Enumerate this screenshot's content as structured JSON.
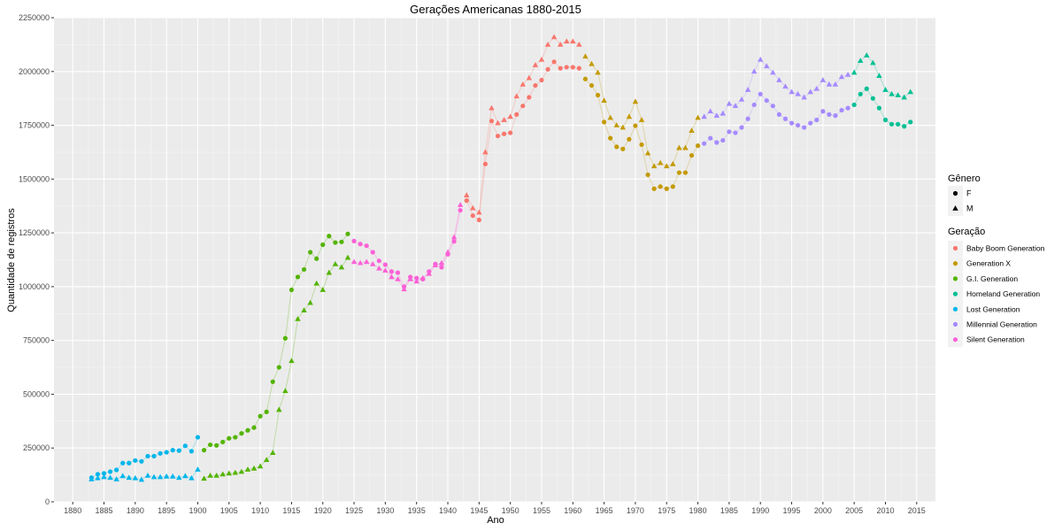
{
  "chart_data": {
    "type": "scatter",
    "title": "Gerações Americanas 1880-2015",
    "xlabel": "Ano",
    "ylabel": "Quantidade de registros",
    "xlim": [
      1877,
      2018
    ],
    "ylim": [
      0,
      2250000
    ],
    "x_ticks": [
      1880,
      1885,
      1890,
      1895,
      1900,
      1905,
      1910,
      1915,
      1920,
      1925,
      1930,
      1935,
      1940,
      1945,
      1950,
      1955,
      1960,
      1965,
      1970,
      1975,
      1980,
      1985,
      1990,
      1995,
      2000,
      2005,
      2010,
      2015
    ],
    "y_ticks": [
      0,
      250000,
      500000,
      750000,
      1000000,
      1250000,
      1500000,
      1750000,
      2000000,
      2250000
    ],
    "grid": true,
    "legend_placement": "right",
    "shape_legend": {
      "title": "Gênero",
      "items": [
        {
          "label": "F",
          "shape": "circle"
        },
        {
          "label": "M",
          "shape": "triangle"
        }
      ]
    },
    "color_legend": {
      "title": "Geração",
      "items": [
        {
          "label": "Baby Boom Generation",
          "color": "#F8766D"
        },
        {
          "label": "Generation X",
          "color": "#C49A00"
        },
        {
          "label": "G.I. Generation",
          "color": "#53B400"
        },
        {
          "label": "Homeland Generation",
          "color": "#00C094"
        },
        {
          "label": "Lost Generation",
          "color": "#00B6EB"
        },
        {
          "label": "Millennial Generation",
          "color": "#A58AFF"
        },
        {
          "label": "Silent Generation",
          "color": "#FB61D7"
        }
      ]
    },
    "series": [
      {
        "generation": "Lost Generation",
        "gender": "F",
        "x": [
          1883,
          1884,
          1885,
          1886,
          1887,
          1888,
          1889,
          1890,
          1891,
          1892,
          1893,
          1894,
          1895,
          1896,
          1897,
          1898,
          1899,
          1900
        ],
        "y": [
          112000,
          128000,
          132000,
          140000,
          148000,
          180000,
          180000,
          192000,
          188000,
          212000,
          212000,
          225000,
          230000,
          240000,
          238000,
          260000,
          235000,
          300000
        ]
      },
      {
        "generation": "Lost Generation",
        "gender": "M",
        "x": [
          1883,
          1884,
          1885,
          1886,
          1887,
          1888,
          1889,
          1890,
          1891,
          1892,
          1893,
          1894,
          1895,
          1896,
          1897,
          1898,
          1899,
          1900
        ],
        "y": [
          105000,
          110000,
          115000,
          112000,
          105000,
          120000,
          112000,
          110000,
          103000,
          122000,
          115000,
          115000,
          118000,
          118000,
          112000,
          120000,
          110000,
          150000
        ]
      },
      {
        "generation": "G.I. Generation",
        "gender": "F",
        "x": [
          1901,
          1902,
          1903,
          1904,
          1905,
          1906,
          1907,
          1908,
          1909,
          1910,
          1911,
          1912,
          1913,
          1914,
          1915,
          1916,
          1917,
          1918,
          1919,
          1920,
          1921,
          1922,
          1923,
          1924
        ],
        "y": [
          240000,
          265000,
          262000,
          278000,
          295000,
          300000,
          318000,
          332000,
          345000,
          398000,
          418000,
          558000,
          625000,
          760000,
          985000,
          1045000,
          1080000,
          1160000,
          1130000,
          1195000,
          1235000,
          1205000,
          1208000,
          1245000
        ]
      },
      {
        "generation": "G.I. Generation",
        "gender": "M",
        "x": [
          1901,
          1902,
          1903,
          1904,
          1905,
          1906,
          1907,
          1908,
          1909,
          1910,
          1911,
          1912,
          1913,
          1914,
          1915,
          1916,
          1917,
          1918,
          1919,
          1920,
          1921,
          1922,
          1923,
          1924
        ],
        "y": [
          108000,
          122000,
          122000,
          128000,
          132000,
          135000,
          140000,
          150000,
          155000,
          165000,
          195000,
          228000,
          428000,
          515000,
          655000,
          850000,
          890000,
          925000,
          1015000,
          985000,
          1065000,
          1105000,
          1090000,
          1135000
        ]
      },
      {
        "generation": "Silent Generation",
        "gender": "F",
        "x": [
          1925,
          1926,
          1927,
          1928,
          1929,
          1930,
          1931,
          1932,
          1933,
          1934,
          1935,
          1936,
          1937,
          1938,
          1939,
          1940,
          1941,
          1942
        ],
        "y": [
          1212000,
          1198000,
          1190000,
          1160000,
          1120000,
          1102000,
          1070000,
          1065000,
          1000000,
          1045000,
          1040000,
          1035000,
          1070000,
          1105000,
          1090000,
          1150000,
          1210000,
          1355000
        ]
      },
      {
        "generation": "Silent Generation",
        "gender": "M",
        "x": [
          1925,
          1926,
          1927,
          1928,
          1929,
          1930,
          1931,
          1932,
          1933,
          1934,
          1935,
          1936,
          1937,
          1938,
          1939,
          1940,
          1941,
          1942
        ],
        "y": [
          1115000,
          1110000,
          1115000,
          1105000,
          1085000,
          1075000,
          1045000,
          1035000,
          988000,
          1035000,
          1025000,
          1040000,
          1060000,
          1100000,
          1110000,
          1160000,
          1230000,
          1380000
        ]
      },
      {
        "generation": "Baby Boom Generation",
        "gender": "F",
        "x": [
          1943,
          1944,
          1945,
          1946,
          1947,
          1948,
          1949,
          1950,
          1951,
          1952,
          1953,
          1954,
          1955,
          1956,
          1957,
          1958,
          1959,
          1960,
          1961
        ],
        "y": [
          1400000,
          1330000,
          1310000,
          1570000,
          1770000,
          1700000,
          1710000,
          1715000,
          1800000,
          1840000,
          1880000,
          1935000,
          1960000,
          2010000,
          2045000,
          2015000,
          2020000,
          2020000,
          2015000
        ]
      },
      {
        "generation": "Baby Boom Generation",
        "gender": "M",
        "x": [
          1943,
          1944,
          1945,
          1946,
          1947,
          1948,
          1949,
          1950,
          1951,
          1952,
          1953,
          1954,
          1955,
          1956,
          1957,
          1958,
          1959,
          1960,
          1961
        ],
        "y": [
          1425000,
          1365000,
          1345000,
          1625000,
          1830000,
          1760000,
          1775000,
          1790000,
          1885000,
          1940000,
          1970000,
          2030000,
          2055000,
          2125000,
          2160000,
          2125000,
          2140000,
          2140000,
          2125000
        ]
      },
      {
        "generation": "Generation X",
        "gender": "F",
        "x": [
          1962,
          1963,
          1964,
          1965,
          1966,
          1967,
          1968,
          1969,
          1970,
          1971,
          1972,
          1973,
          1974,
          1975,
          1976,
          1977,
          1978,
          1979,
          1980
        ],
        "y": [
          1965000,
          1935000,
          1890000,
          1765000,
          1690000,
          1650000,
          1640000,
          1685000,
          1748000,
          1660000,
          1520000,
          1455000,
          1465000,
          1455000,
          1465000,
          1530000,
          1530000,
          1610000,
          1655000
        ]
      },
      {
        "generation": "Generation X",
        "gender": "M",
        "x": [
          1962,
          1963,
          1964,
          1965,
          1966,
          1967,
          1968,
          1969,
          1970,
          1971,
          1972,
          1973,
          1974,
          1975,
          1976,
          1977,
          1978,
          1979,
          1980
        ],
        "y": [
          2070000,
          2035000,
          1995000,
          1865000,
          1785000,
          1750000,
          1740000,
          1790000,
          1860000,
          1775000,
          1620000,
          1560000,
          1575000,
          1560000,
          1570000,
          1645000,
          1645000,
          1725000,
          1785000
        ]
      },
      {
        "generation": "Millennial Generation",
        "gender": "F",
        "x": [
          1981,
          1982,
          1983,
          1984,
          1985,
          1986,
          1987,
          1988,
          1989,
          1990,
          1991,
          1992,
          1993,
          1994,
          1995,
          1996,
          1997,
          1998,
          1999,
          2000,
          2001,
          2002,
          2003,
          2004
        ],
        "y": [
          1665000,
          1690000,
          1670000,
          1680000,
          1720000,
          1715000,
          1740000,
          1780000,
          1845000,
          1895000,
          1865000,
          1840000,
          1800000,
          1780000,
          1760000,
          1750000,
          1740000,
          1760000,
          1775000,
          1815000,
          1800000,
          1795000,
          1820000,
          1830000
        ]
      },
      {
        "generation": "Millennial Generation",
        "gender": "M",
        "x": [
          1981,
          1982,
          1983,
          1984,
          1985,
          1986,
          1987,
          1988,
          1989,
          1990,
          1991,
          1992,
          1993,
          1994,
          1995,
          1996,
          1997,
          1998,
          1999,
          2000,
          2001,
          2002,
          2003,
          2004
        ],
        "y": [
          1790000,
          1815000,
          1795000,
          1805000,
          1850000,
          1840000,
          1870000,
          1915000,
          2000000,
          2055000,
          2025000,
          1995000,
          1960000,
          1930000,
          1905000,
          1895000,
          1880000,
          1905000,
          1920000,
          1960000,
          1940000,
          1940000,
          1975000,
          1985000
        ]
      },
      {
        "generation": "Homeland Generation",
        "gender": "F",
        "x": [
          2005,
          2006,
          2007,
          2008,
          2009,
          2010,
          2011,
          2012,
          2013,
          2014
        ],
        "y": [
          1845000,
          1895000,
          1920000,
          1875000,
          1830000,
          1775000,
          1755000,
          1755000,
          1745000,
          1765000
        ]
      },
      {
        "generation": "Homeland Generation",
        "gender": "M",
        "x": [
          2005,
          2006,
          2007,
          2008,
          2009,
          2010,
          2011,
          2012,
          2013,
          2014
        ],
        "y": [
          1995000,
          2050000,
          2075000,
          2040000,
          1980000,
          1915000,
          1895000,
          1890000,
          1880000,
          1905000
        ]
      }
    ]
  }
}
